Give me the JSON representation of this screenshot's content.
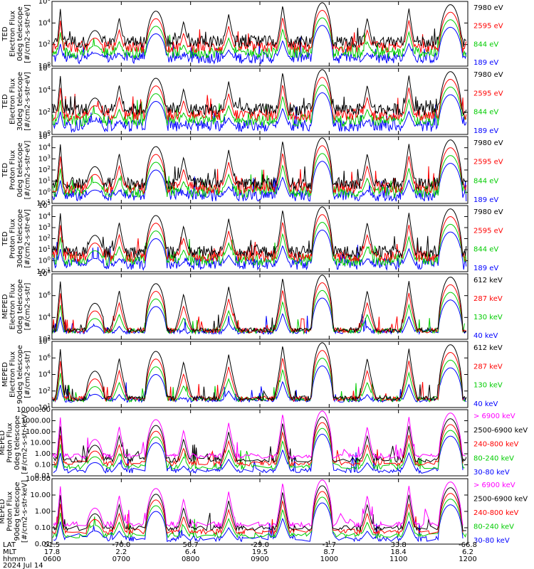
{
  "chart_data": {
    "type": "line",
    "panels": [
      {
        "ylabel": [
          "TED",
          "Electron Flux",
          "0deg telescope",
          "[#/cm2-s-str-eV]"
        ],
        "yscale": "log",
        "ylim_exp": [
          0,
          6
        ],
        "tick_labels": [
          "10^0",
          "10^2",
          "10^4",
          "10^6"
        ],
        "legend": [
          {
            "label": "7980 eV",
            "color": "#000000"
          },
          {
            "label": "2595 eV",
            "color": "#ff0000"
          },
          {
            "label": "844 eV",
            "color": "#00cc00"
          },
          {
            "label": "189 eV",
            "color": "#0000ff"
          }
        ]
      },
      {
        "ylabel": [
          "TED",
          "Electron Flux",
          "30deg telescope",
          "[#/cm2-s-str-eV]"
        ],
        "yscale": "log",
        "ylim_exp": [
          0,
          6
        ],
        "tick_labels": [
          "10^0",
          "10^2",
          "10^4",
          "10^6"
        ],
        "legend": [
          {
            "label": "7980 eV",
            "color": "#000000"
          },
          {
            "label": "2595 eV",
            "color": "#ff0000"
          },
          {
            "label": "844 eV",
            "color": "#00cc00"
          },
          {
            "label": "189 eV",
            "color": "#0000ff"
          }
        ]
      },
      {
        "ylabel": [
          "TED",
          "Proton Flux",
          "0deg telescope",
          "[#/cm2-s-str-eV]"
        ],
        "yscale": "log",
        "ylim_exp": [
          -1,
          5
        ],
        "tick_labels": [
          "10^-1",
          "10^0",
          "10^1",
          "10^2",
          "10^3",
          "10^4",
          "10^5"
        ],
        "legend": [
          {
            "label": "7980 eV",
            "color": "#000000"
          },
          {
            "label": "2595 eV",
            "color": "#ff0000"
          },
          {
            "label": "844 eV",
            "color": "#00cc00"
          },
          {
            "label": "189 eV",
            "color": "#0000ff"
          }
        ]
      },
      {
        "ylabel": [
          "TED",
          "Proton Flux",
          "30deg telescope",
          "[#/cm2-s-str-eV]"
        ],
        "yscale": "log",
        "ylim_exp": [
          -1,
          5
        ],
        "tick_labels": [
          "10^-1",
          "10^0",
          "10^1",
          "10^2",
          "10^3",
          "10^4",
          "10^5"
        ],
        "legend": [
          {
            "label": "7980 eV",
            "color": "#000000"
          },
          {
            "label": "2595 eV",
            "color": "#ff0000"
          },
          {
            "label": "844 eV",
            "color": "#00cc00"
          },
          {
            "label": "189 eV",
            "color": "#0000ff"
          }
        ]
      },
      {
        "ylabel": [
          "MEPED",
          "Electron Flux",
          "0deg telescope",
          "[#/cm2-s-str]"
        ],
        "yscale": "log",
        "ylim_exp": [
          1,
          8
        ],
        "tick_labels": [
          "10^2",
          "10^4",
          "10^6",
          "10^8"
        ],
        "legend": [
          {
            "label": "612 keV",
            "color": "#000000"
          },
          {
            "label": "287 keV",
            "color": "#ff0000"
          },
          {
            "label": "130 keV",
            "color": "#00cc00"
          },
          {
            "label": "40 keV",
            "color": "#0000ff"
          }
        ]
      },
      {
        "ylabel": [
          "MEPED",
          "Electron Flux",
          "90deg telescope",
          "[#/cm2-s-str]"
        ],
        "yscale": "log",
        "ylim_exp": [
          1,
          8
        ],
        "tick_labels": [
          "10^1",
          "10^2",
          "10^4",
          "10^6",
          "10^8"
        ],
        "legend": [
          {
            "label": "612 keV",
            "color": "#000000"
          },
          {
            "label": "287 keV",
            "color": "#ff0000"
          },
          {
            "label": "130 keV",
            "color": "#00cc00"
          },
          {
            "label": "40 keV",
            "color": "#0000ff"
          }
        ]
      },
      {
        "ylabel": [
          "MEPED",
          "Proton Flux",
          "0deg telescope",
          "[#/cm2-s-str-keV]"
        ],
        "yscale": "log",
        "ylim_exp": [
          -2,
          4
        ],
        "tick_labels": [
          "0.01",
          "0.10",
          "1.00",
          "10.00",
          "100.00",
          "1000.00",
          "10000.00"
        ],
        "legend": [
          {
            "label": "> 6900 keV",
            "color": "#ff00ff"
          },
          {
            "label": "2500-6900 keV",
            "color": "#000000"
          },
          {
            "label": "240-800 keV",
            "color": "#ff0000"
          },
          {
            "label": "80-240 keV",
            "color": "#00cc00"
          },
          {
            "label": "30-80 keV",
            "color": "#0000ff"
          }
        ]
      },
      {
        "ylabel": [
          "MEPED",
          "Proton Flux",
          "90deg telescope",
          "[#/cm2-s-str-keV]"
        ],
        "yscale": "log",
        "ylim_exp": [
          -2,
          3
        ],
        "tick_labels": [
          "0.01",
          "0.10",
          "1.00",
          "10.00",
          "100.00"
        ],
        "legend": [
          {
            "label": "> 6900 keV",
            "color": "#ff00ff"
          },
          {
            "label": "2500-6900 keV",
            "color": "#000000"
          },
          {
            "label": "240-800 keV",
            "color": "#ff0000"
          },
          {
            "label": "80-240 keV",
            "color": "#00cc00"
          },
          {
            "label": "30-80 keV",
            "color": "#0000ff"
          }
        ]
      }
    ],
    "x_axis": {
      "rows": [
        {
          "label": "LAT",
          "values": [
            "51.5",
            "-70.0",
            "56.7",
            "-29.0",
            "-1.7",
            "33.8",
            "-66.8"
          ]
        },
        {
          "label": "MLT",
          "values": [
            "17.8",
            "2.2",
            "6.4",
            "19.5",
            "8.7",
            "18.4",
            "6.2"
          ]
        },
        {
          "label": "hhmm",
          "values": [
            "0600",
            "0700",
            "0800",
            "0900",
            "1000",
            "1100",
            "1200"
          ]
        }
      ],
      "date": "2024 Jul 14",
      "hours": [
        6,
        12
      ]
    },
    "passes": [
      {
        "center": 6.12,
        "width": 0.1,
        "peak": 0.9,
        "type": "spike"
      },
      {
        "center": 6.62,
        "width": 0.14,
        "peak": 0.55,
        "type": "dome"
      },
      {
        "center": 6.97,
        "width": 0.2,
        "peak": 0.75,
        "type": "spike"
      },
      {
        "center": 7.5,
        "width": 0.16,
        "peak": 0.85,
        "type": "dome"
      },
      {
        "center": 7.9,
        "width": 0.2,
        "peak": 0.7,
        "type": "spike"
      },
      {
        "center": 8.55,
        "width": 0.22,
        "peak": 0.8,
        "type": "spike"
      },
      {
        "center": 9.33,
        "width": 0.18,
        "peak": 0.95,
        "type": "spike"
      },
      {
        "center": 9.9,
        "width": 0.16,
        "peak": 0.98,
        "type": "dome"
      },
      {
        "center": 10.55,
        "width": 0.2,
        "peak": 0.75,
        "type": "spike"
      },
      {
        "center": 11.15,
        "width": 0.18,
        "peak": 0.9,
        "type": "spike"
      },
      {
        "center": 11.75,
        "width": 0.18,
        "peak": 0.95,
        "type": "dome"
      }
    ]
  }
}
